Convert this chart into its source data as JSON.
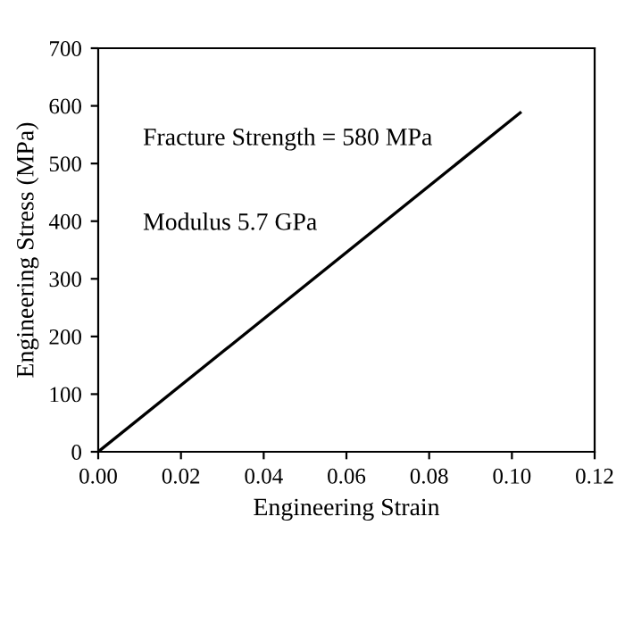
{
  "chart_data": {
    "type": "line",
    "xlabel": "Engineering Strain",
    "ylabel": "Engineering Stress (MPa)",
    "x": [
      0,
      0.102
    ],
    "series": [
      {
        "color": "#000000",
        "values": [
          0,
          588
        ]
      }
    ],
    "xlim": [
      0,
      0.12
    ],
    "xticks": [
      {
        "value": 0,
        "label": "0.00"
      },
      {
        "value": 0.02,
        "label": "0.02"
      },
      {
        "value": 0.04,
        "label": "0.04"
      },
      {
        "value": 0.06,
        "label": "0.06"
      },
      {
        "value": 0.08,
        "label": "0.08"
      },
      {
        "value": 0.1,
        "label": "0.10"
      },
      {
        "value": 0.12,
        "label": "0.12"
      }
    ],
    "ylim": [
      0,
      700
    ],
    "yticks": [
      0,
      100,
      200,
      300,
      400,
      500,
      600,
      700
    ],
    "annotations": [
      "Fracture Strength = 580 MPa",
      "Modulus 5.7 GPa"
    ],
    "grid": false,
    "legend": false,
    "marker": "none",
    "line_style": "solid"
  }
}
